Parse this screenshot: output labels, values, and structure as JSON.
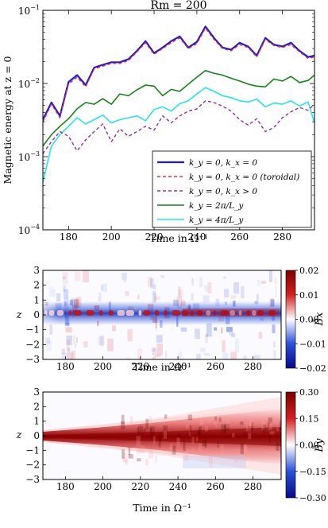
{
  "chart_data": [
    {
      "type": "line",
      "title": "Rm = 200",
      "xlabel": "Time in Ω⁻¹",
      "ylabel": "Magnetic energy at z = 0",
      "xlim": [
        168,
        295
      ],
      "ylim": [
        0.0001,
        0.1
      ],
      "yscale": "log",
      "grid": false,
      "legend_position": "bottom-right",
      "x_ticks": [
        180,
        200,
        220,
        240,
        260,
        280
      ],
      "y_ticks": [
        0.0001,
        0.001,
        0.01,
        0.1
      ],
      "y_tick_labels": [
        {
          "base": "10",
          "exp": "−4"
        },
        {
          "base": "10",
          "exp": "−3"
        },
        {
          "base": "10",
          "exp": "−2"
        },
        {
          "base": "10",
          "exp": "−1"
        }
      ],
      "x": [
        168,
        172,
        176,
        180,
        184,
        188,
        192,
        196,
        200,
        204,
        208,
        212,
        216,
        220,
        224,
        228,
        232,
        236,
        240,
        244,
        248,
        252,
        256,
        260,
        264,
        268,
        272,
        276,
        280,
        284,
        288,
        292,
        295
      ],
      "series": [
        {
          "name": "k_y = 0, k_x = 0",
          "color": "#1c1cd6",
          "dash": "solid",
          "width": 2.2,
          "values": [
            0.0032,
            0.0055,
            0.0036,
            0.0105,
            0.013,
            0.0095,
            0.0165,
            0.018,
            0.0195,
            0.0195,
            0.0215,
            0.028,
            0.038,
            0.026,
            0.031,
            0.038,
            0.044,
            0.031,
            0.037,
            0.06,
            0.042,
            0.031,
            0.029,
            0.036,
            0.032,
            0.024,
            0.042,
            0.034,
            0.032,
            0.036,
            0.028,
            0.023,
            0.024
          ]
        },
        {
          "name": "k_y = 0, k_x = 0 (toroidal)",
          "color": "#e8323a",
          "dash": "4,3",
          "width": 1.4,
          "values": [
            0.003,
            0.0052,
            0.0034,
            0.0098,
            0.0122,
            0.009,
            0.0158,
            0.0172,
            0.0188,
            0.0188,
            0.0205,
            0.027,
            0.036,
            0.025,
            0.03,
            0.036,
            0.042,
            0.03,
            0.035,
            0.057,
            0.04,
            0.03,
            0.028,
            0.034,
            0.031,
            0.023,
            0.04,
            0.033,
            0.031,
            0.034,
            0.027,
            0.022,
            0.023
          ]
        },
        {
          "name": "k_y = 0, k_x > 0",
          "color": "#9a2a9e",
          "dash": "4,3",
          "width": 1.4,
          "values": [
            0.0011,
            0.0016,
            0.0022,
            0.0019,
            0.0012,
            0.0017,
            0.0022,
            0.0028,
            0.0016,
            0.0024,
            0.0019,
            0.0022,
            0.0026,
            0.0023,
            0.0036,
            0.0029,
            0.0036,
            0.0042,
            0.0045,
            0.0058,
            0.0055,
            0.0049,
            0.0042,
            0.0032,
            0.0027,
            0.0033,
            0.0022,
            0.0025,
            0.0034,
            0.0041,
            0.0047,
            0.0043,
            0.0052
          ]
        },
        {
          "name": "k_y = 2π/L_y",
          "color": "#178417",
          "dash": "solid",
          "width": 1.6,
          "values": [
            0.0014,
            0.002,
            0.0026,
            0.0033,
            0.0045,
            0.0055,
            0.0052,
            0.0062,
            0.0052,
            0.0072,
            0.0068,
            0.0082,
            0.0095,
            0.0092,
            0.0068,
            0.0083,
            0.0078,
            0.0098,
            0.0122,
            0.015,
            0.0138,
            0.013,
            0.0118,
            0.0108,
            0.0098,
            0.0092,
            0.009,
            0.0115,
            0.0108,
            0.0125,
            0.0103,
            0.011,
            0.013
          ]
        },
        {
          "name": "k_y = 4π/L_y",
          "color": "#22e6ec",
          "dash": "solid",
          "width": 1.6,
          "values": [
            0.00045,
            0.0014,
            0.002,
            0.0026,
            0.0034,
            0.0028,
            0.0032,
            0.0037,
            0.0029,
            0.0032,
            0.0034,
            0.0036,
            0.0031,
            0.0044,
            0.0048,
            0.0042,
            0.0053,
            0.0058,
            0.0072,
            0.0088,
            0.0078,
            0.0068,
            0.0064,
            0.0058,
            0.0056,
            0.0061,
            0.0048,
            0.0054,
            0.0052,
            0.0058,
            0.0049,
            0.0056,
            0.0029
          ]
        }
      ]
    },
    {
      "type": "heatmap",
      "xlabel": "Time in Ω⁻¹",
      "ylabel": "z",
      "xlim": [
        168,
        295
      ],
      "ylim": [
        -3,
        3
      ],
      "x_ticks": [
        180,
        200,
        220,
        240,
        260,
        280
      ],
      "y_ticks": [
        3,
        2,
        1,
        0,
        -1,
        -2,
        -3
      ],
      "colorbar": {
        "label": "B̄x",
        "min": -0.02,
        "max": 0.02,
        "ticks": [
          "0.02",
          "0.01",
          "0.00",
          "−0.01",
          "−0.02"
        ]
      },
      "colormap": [
        "#08088a",
        "#2952d6",
        "#ffffff",
        "#d42020",
        "#7a0000"
      ]
    },
    {
      "type": "heatmap",
      "xlabel": "Time in Ω⁻¹",
      "ylabel": "z",
      "xlim": [
        168,
        295
      ],
      "ylim": [
        -3,
        3
      ],
      "x_ticks": [
        180,
        200,
        220,
        240,
        260,
        280
      ],
      "y_ticks": [
        3,
        2,
        1,
        0,
        -1,
        -2,
        -3
      ],
      "colorbar": {
        "label": "B̄y",
        "min": -0.3,
        "max": 0.3,
        "ticks": [
          "0.30",
          "0.15",
          "0.00",
          "−0.15",
          "−0.30"
        ]
      },
      "colormap": [
        "#08088a",
        "#2952d6",
        "#ffffff",
        "#d42020",
        "#7a0000"
      ]
    }
  ]
}
